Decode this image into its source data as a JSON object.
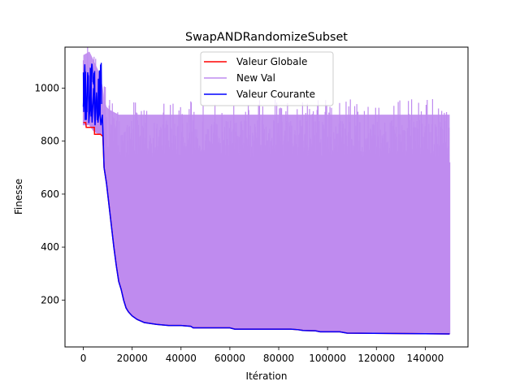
{
  "chart_data": {
    "type": "line",
    "title": "SwapANDRandomizeSubset",
    "xlabel": "Itération",
    "ylabel": "Finesse",
    "xlim": [
      -7500,
      157500
    ],
    "ylim": [
      23,
      1155
    ],
    "xticks": [
      0,
      20000,
      40000,
      60000,
      80000,
      100000,
      120000,
      140000
    ],
    "xtick_labels": [
      "0",
      "20000",
      "40000",
      "60000",
      "80000",
      "100000",
      "120000",
      "140000"
    ],
    "yticks": [
      200,
      400,
      600,
      800,
      1000
    ],
    "ytick_labels": [
      "200",
      "400",
      "600",
      "800",
      "1000"
    ],
    "grid": false,
    "legend_position": "top-center",
    "series": [
      {
        "name": "Valeur Globale",
        "color": "#ff0000",
        "x": [
          0,
          1000,
          1200,
          2500,
          3500,
          4500,
          4600,
          7000,
          8000,
          8500,
          9500,
          10500,
          11500,
          12500,
          13500,
          14500,
          15500,
          16500,
          17500,
          18500,
          20000,
          22000,
          25000,
          30000,
          35000,
          40000,
          44000,
          45000,
          60000,
          62000,
          85000,
          88000,
          90000,
          95000,
          97000,
          105000,
          108000,
          150000
        ],
        "y": [
          870,
          870,
          852,
          852,
          852,
          852,
          826,
          826,
          818,
          700,
          640,
          560,
          480,
          400,
          330,
          270,
          240,
          200,
          170,
          155,
          140,
          127,
          115,
          108,
          104,
          104,
          101,
          95,
          95,
          90,
          90,
          88,
          85,
          84,
          80,
          80,
          75,
          72
        ]
      },
      {
        "name": "New Val",
        "color": "#bf8bef",
        "band": {
          "x": [
            0,
            1000,
            2500,
            4000,
            5500,
            7000,
            8000,
            8500,
            9500,
            10500,
            11500,
            12500,
            13500,
            14500,
            15500,
            16500,
            17500,
            18500,
            20000,
            22000,
            25000,
            30000,
            35000,
            40000,
            44000,
            45000,
            60000,
            62000,
            85000,
            88000,
            90000,
            95000,
            97000,
            105000,
            108000,
            150000
          ],
          "high": [
            1125,
            1130,
            1138,
            1110,
            1080,
            1050,
            1000,
            960,
            930,
            920,
            915,
            910,
            905,
            900,
            900,
            900,
            900,
            900,
            900,
            900,
            900,
            900,
            900,
            900,
            900,
            900,
            900,
            900,
            900,
            900,
            900,
            900,
            900,
            900,
            900,
            900
          ],
          "low": [
            860,
            860,
            860,
            840,
            830,
            826,
            818,
            700,
            640,
            560,
            480,
            400,
            330,
            270,
            240,
            200,
            170,
            155,
            140,
            127,
            115,
            108,
            104,
            104,
            101,
            95,
            95,
            90,
            90,
            88,
            85,
            84,
            80,
            80,
            75,
            72
          ]
        }
      },
      {
        "name": "Valeur Courante",
        "color": "#0000ff",
        "x": [
          0,
          600,
          1200,
          1800,
          2400,
          3000,
          3600,
          4200,
          4800,
          5400,
          6000,
          6600,
          7200,
          7800,
          8500,
          9500,
          10500,
          11500,
          12500,
          13500,
          14500,
          15500,
          16500,
          17500,
          18500,
          20000,
          22000,
          25000,
          30000,
          35000,
          40000,
          44000,
          45000,
          60000,
          62000,
          85000,
          88000,
          90000,
          95000,
          97000,
          105000,
          108000,
          150000
        ],
        "y": [
          930,
          1090,
          880,
          1060,
          900,
          1040,
          870,
          1000,
          860,
          980,
          870,
          930,
          860,
          900,
          700,
          640,
          560,
          480,
          400,
          330,
          270,
          240,
          200,
          170,
          155,
          140,
          127,
          115,
          108,
          104,
          104,
          101,
          95,
          95,
          90,
          90,
          88,
          85,
          84,
          80,
          80,
          75,
          72
        ]
      }
    ]
  }
}
